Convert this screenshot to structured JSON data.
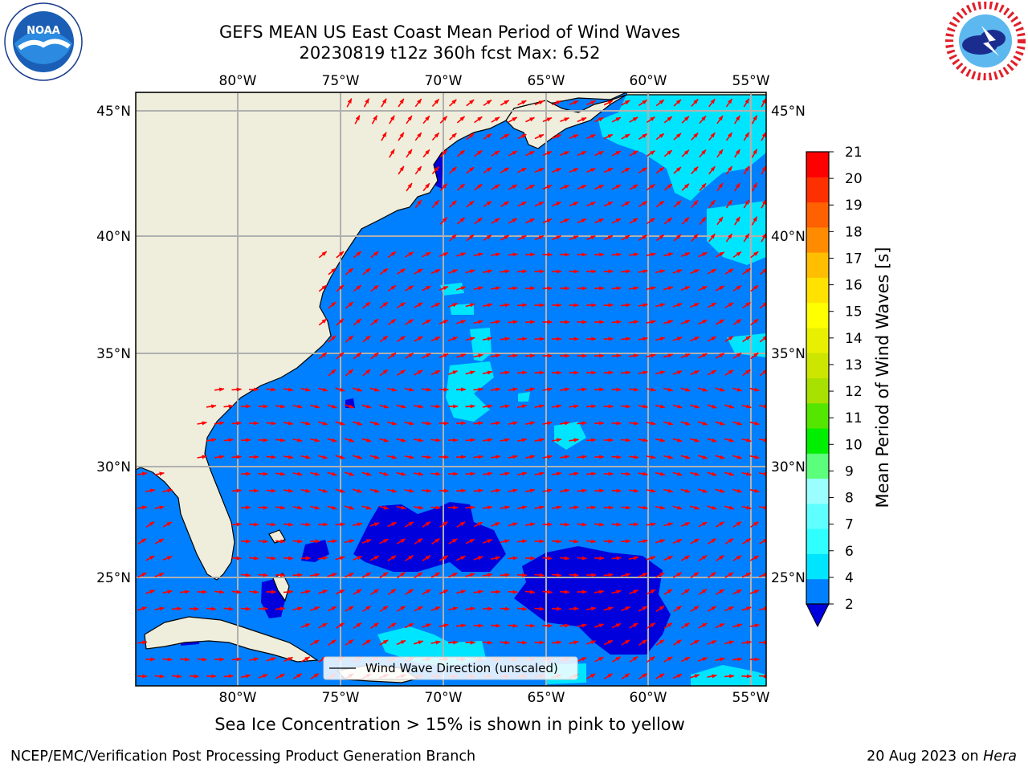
{
  "header": {
    "title_line1": "GEFS MEAN US East Coast Mean Period of Wind Waves",
    "title_line2": "20230819 t12z 360h fcst   Max: 6.52"
  },
  "logos": {
    "left": {
      "icon": "noaa-logo-icon",
      "text": "NOAA"
    },
    "right": {
      "icon": "nws-logo-icon"
    }
  },
  "map": {
    "lon_ticks": [
      "80°W",
      "75°W",
      "70°W",
      "65°W",
      "60°W",
      "55°W"
    ],
    "lat_ticks": [
      "45°N",
      "40°N",
      "35°N",
      "30°N",
      "25°N"
    ],
    "lon_range": [
      -85,
      -54.5
    ],
    "lat_range": [
      20.5,
      46
    ],
    "legend_label": "Wind Wave Direction (unscaled)",
    "legend_placement": "bottom-center",
    "arrow_color": "#ff0000",
    "land_color": "#efeedc",
    "gridlines": true
  },
  "colorbar": {
    "label": "Mean Period of Wind Waves [s]",
    "tick_labels": [
      "2",
      "4",
      "6",
      "7",
      "8",
      "9",
      "10",
      "11",
      "12",
      "13",
      "14",
      "15",
      "16",
      "17",
      "18",
      "19",
      "20",
      "21"
    ],
    "colors": [
      "#0080ff",
      "#00e5ff",
      "#30ffff",
      "#60ffff",
      "#9bffff",
      "#5bff7c",
      "#00ef00",
      "#55e600",
      "#a8e000",
      "#cce600",
      "#e8ef00",
      "#ffff00",
      "#ffe200",
      "#ffbe00",
      "#ff8c00",
      "#ff6000",
      "#ff3000",
      "#ff0000"
    ],
    "under_color": "#0000dd"
  },
  "footer": {
    "note": "Sea Ice Concentration > 15% is shown in pink to yellow",
    "credit": "NCEP/EMC/Verification Post Processing Product Generation Branch",
    "date": "20 Aug 2023 on",
    "machine": "Hera"
  }
}
